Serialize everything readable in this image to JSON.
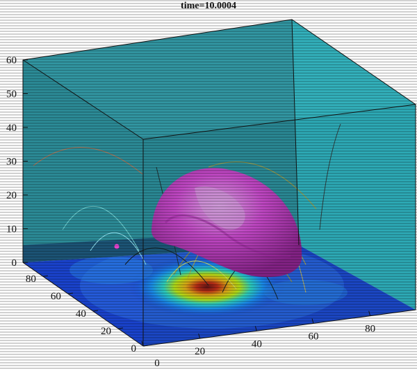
{
  "chart_data": {
    "type": "surface3d",
    "title": "time=10.0004",
    "xlabel": "",
    "ylabel": "",
    "zlabel": "",
    "x_ticks": [
      0,
      20,
      40,
      60,
      80
    ],
    "y_ticks": [
      0,
      20,
      40,
      60,
      80
    ],
    "z_ticks": [
      0,
      10,
      20,
      30,
      40,
      50,
      60
    ],
    "xlim": [
      0,
      96
    ],
    "ylim": [
      0,
      96
    ],
    "zlim": [
      0,
      60
    ],
    "colormap": "jet",
    "floor_field_peak": {
      "x": 26,
      "y": 44
    },
    "isosurface_color": "#e040d0",
    "wall_color": "#2f9aa4",
    "grid": false
  }
}
